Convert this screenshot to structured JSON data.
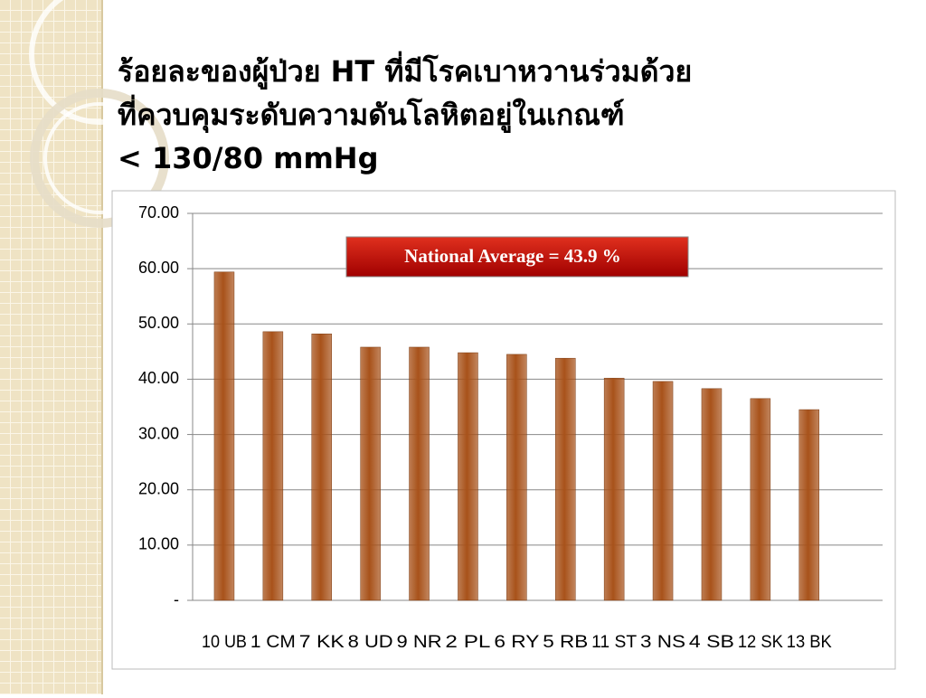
{
  "chart_data": {
    "type": "bar",
    "title": [
      "ร้อยละของผู้ป่วย HT ที่มีโรคเบาหวานร่วมด้วย",
      "ที่ควบคุมระดับความดันโลหิตอยู่ในเกณฑ์",
      "< 130/80 mmHg"
    ],
    "annotation": "National Average = 43.9 %",
    "categories": [
      "10 UB",
      "1 CM",
      "7 KK",
      "8 UD",
      "9 NR",
      "2 PL",
      "6 RY",
      "5 RB",
      "11 ST",
      "3 NS",
      "4 SB",
      "12 SK",
      "13 BK"
    ],
    "values": [
      59.4,
      48.6,
      48.2,
      45.8,
      45.8,
      44.8,
      44.5,
      43.8,
      40.2,
      39.6,
      38.3,
      36.5,
      34.5
    ],
    "color": "#a8521a",
    "ylim": [
      0,
      70
    ],
    "yticks": [
      {
        "value": 0,
        "label": "-"
      },
      {
        "value": 10,
        "label": "10.00"
      },
      {
        "value": 20,
        "label": "20.00"
      },
      {
        "value": 30,
        "label": "30.00"
      },
      {
        "value": 40,
        "label": "40.00"
      },
      {
        "value": 50,
        "label": "50.00"
      },
      {
        "value": 60,
        "label": "60.00"
      },
      {
        "value": 70,
        "label": "70.00"
      }
    ],
    "grid": true
  }
}
